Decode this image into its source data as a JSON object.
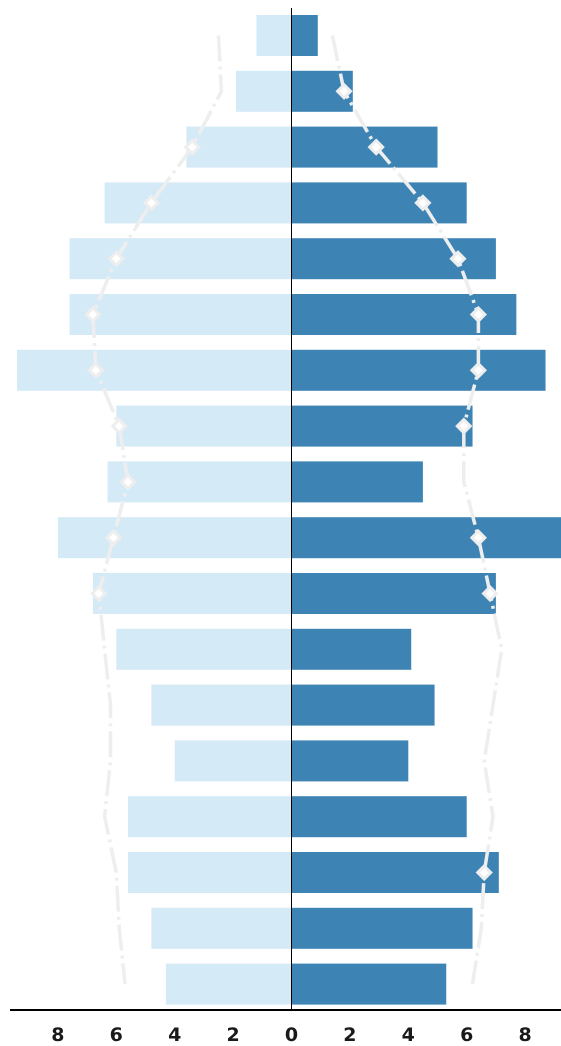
{
  "chart_data": {
    "type": "bar",
    "orientation": "horizontal",
    "layout": "population-pyramid",
    "title": "",
    "xlabel": "",
    "ylabel": "",
    "xlim": [
      -9.6,
      9.4
    ],
    "xticks": [
      -8,
      -6,
      -4,
      -2,
      0,
      2,
      4,
      6,
      8
    ],
    "xtick_labels": [
      "8",
      "6",
      "4",
      "2",
      "0",
      "2",
      "4",
      "6",
      "8"
    ],
    "grid": false,
    "legend": "none",
    "row_count": 18,
    "series": [
      {
        "side": "left",
        "color": "#d5eaf7",
        "values": [
          1.2,
          1.9,
          3.6,
          6.4,
          7.6,
          7.6,
          9.4,
          6.0,
          6.3,
          8.0,
          6.8,
          6.0,
          4.8,
          4.0,
          5.6,
          5.6,
          4.8,
          4.3
        ]
      },
      {
        "side": "right",
        "color": "#3d84b5",
        "values": [
          0.9,
          2.1,
          5.0,
          6.0,
          7.0,
          7.7,
          8.7,
          6.2,
          4.5,
          9.4,
          7.0,
          4.1,
          4.9,
          4.0,
          6.0,
          7.1,
          6.2,
          5.3
        ]
      },
      {
        "side": "left",
        "type": "line",
        "color": "#eeeeee",
        "values": [
          2.5,
          2.4,
          3.4,
          4.8,
          6.0,
          6.8,
          6.7,
          5.9,
          5.6,
          6.1,
          6.6,
          6.4,
          6.2,
          6.2,
          6.4,
          6.0,
          5.9,
          5.7
        ],
        "markers": [
          false,
          false,
          true,
          true,
          true,
          true,
          true,
          true,
          true,
          true,
          true,
          false,
          false,
          false,
          false,
          false,
          false,
          false
        ]
      },
      {
        "side": "right",
        "type": "line",
        "color": "#eeeeee",
        "values": [
          1.4,
          1.8,
          2.9,
          4.5,
          5.7,
          6.4,
          6.4,
          5.9,
          5.9,
          6.4,
          6.8,
          7.2,
          6.9,
          6.6,
          6.9,
          6.6,
          6.5,
          6.2
        ],
        "markers": [
          false,
          true,
          true,
          true,
          true,
          true,
          true,
          true,
          false,
          true,
          true,
          false,
          false,
          false,
          false,
          true,
          false,
          false
        ]
      }
    ]
  },
  "colors": {
    "left_bar": "#d5eaf7",
    "right_bar": "#3d84b5",
    "reference_line": "#eeeeee",
    "center_axis": "#000000",
    "text": "#1a1a1a"
  }
}
